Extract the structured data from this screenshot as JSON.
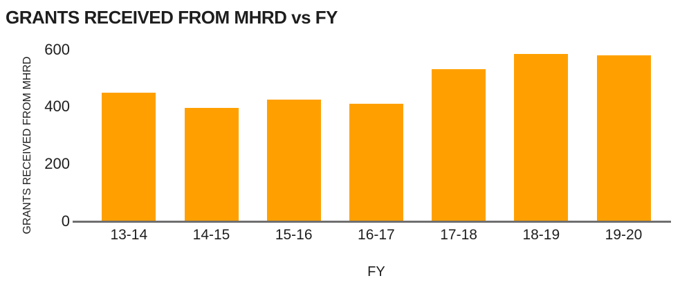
{
  "chart_data": {
    "type": "bar",
    "title": "GRANTS RECEIVED FROM MHRD vs FY",
    "xlabel": "FY",
    "ylabel": "GRANTS RECEIVED FROM MHRD",
    "categories": [
      "13-14",
      "14-15",
      "15-16",
      "16-17",
      "17-18",
      "18-19",
      "19-20"
    ],
    "values": [
      450,
      396,
      425,
      410,
      530,
      585,
      580
    ],
    "ylim": [
      0,
      600
    ],
    "yticks": [
      0,
      200,
      400,
      600
    ],
    "grid": false,
    "legend": false,
    "colors": {
      "bar": "#FFA000",
      "axis": "#6F6F6F",
      "text": "#1E1E1E",
      "background": "#FFFFFF"
    }
  }
}
